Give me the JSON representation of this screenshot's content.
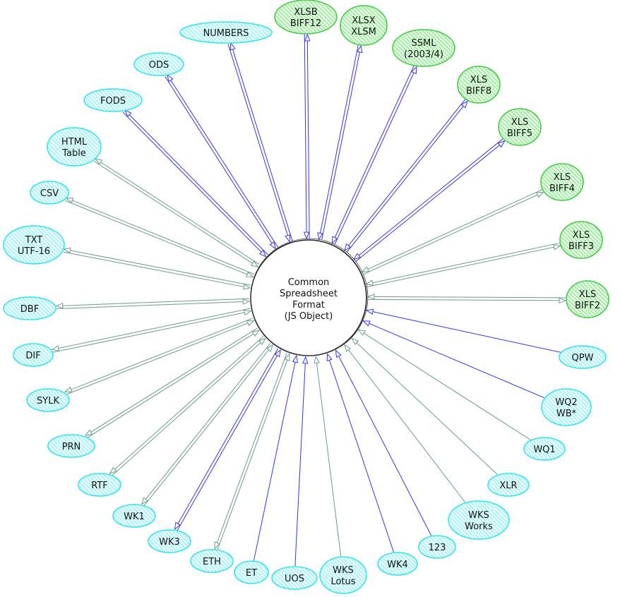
{
  "center": {
    "lines": [
      "Common",
      "Spreadsheet",
      "Format",
      "(JS Object)"
    ]
  },
  "colors": {
    "native_fill": "#5fe05f",
    "native_stroke": "#3ccc3c",
    "other_fill": "#5ee8ee",
    "other_stroke": "#30e4ec",
    "edge_blue": "#3434f0",
    "edge_gray": "#6a9c8a"
  },
  "nodes": [
    {
      "lines": [
        "XLSB",
        "BIFF12"
      ],
      "kind": "native",
      "edge": "blue",
      "both": true
    },
    {
      "lines": [
        "XLSX",
        "XLSM"
      ],
      "kind": "native",
      "edge": "blue",
      "both": true
    },
    {
      "lines": [
        "SSML",
        "(2003/4)"
      ],
      "kind": "native",
      "edge": "blue",
      "both": true
    },
    {
      "lines": [
        "XLS",
        "BIFF8"
      ],
      "kind": "native",
      "edge": "blue",
      "both": true
    },
    {
      "lines": [
        "XLS",
        "BIFF5"
      ],
      "kind": "native",
      "edge": "blue",
      "both": true
    },
    {
      "lines": [
        "XLS",
        "BIFF4"
      ],
      "kind": "native",
      "edge": "gray",
      "both": true
    },
    {
      "lines": [
        "XLS",
        "BIFF3"
      ],
      "kind": "native",
      "edge": "gray",
      "both": true
    },
    {
      "lines": [
        "XLS",
        "BIFF2"
      ],
      "kind": "native",
      "edge": "gray",
      "both": true
    },
    {
      "lines": [
        "QPW"
      ],
      "kind": "other",
      "edge": "blue",
      "both": false
    },
    {
      "lines": [
        "WQ2",
        "WB*"
      ],
      "kind": "other",
      "edge": "blue",
      "both": false
    },
    {
      "lines": [
        "WQ1"
      ],
      "kind": "other",
      "edge": "gray",
      "both": false
    },
    {
      "lines": [
        "XLR"
      ],
      "kind": "other",
      "edge": "gray",
      "both": false
    },
    {
      "lines": [
        "WKS",
        "Works"
      ],
      "kind": "other",
      "edge": "gray",
      "both": false
    },
    {
      "lines": [
        "123"
      ],
      "kind": "other",
      "edge": "blue",
      "both": false
    },
    {
      "lines": [
        "WK4"
      ],
      "kind": "other",
      "edge": "blue",
      "both": false
    },
    {
      "lines": [
        "WKS",
        "Lotus"
      ],
      "kind": "other",
      "edge": "gray",
      "both": false
    },
    {
      "lines": [
        "UOS"
      ],
      "kind": "other",
      "edge": "blue",
      "both": false
    },
    {
      "lines": [
        "ET"
      ],
      "kind": "other",
      "edge": "blue",
      "both": false
    },
    {
      "lines": [
        "ETH"
      ],
      "kind": "other",
      "edge": "gray",
      "both": true
    },
    {
      "lines": [
        "WK3"
      ],
      "kind": "other",
      "edge": "blue",
      "both": true
    },
    {
      "lines": [
        "WK1"
      ],
      "kind": "other",
      "edge": "gray",
      "both": true
    },
    {
      "lines": [
        "RTF"
      ],
      "kind": "other",
      "edge": "gray",
      "both": true
    },
    {
      "lines": [
        "PRN"
      ],
      "kind": "other",
      "edge": "gray",
      "both": true
    },
    {
      "lines": [
        "SYLK"
      ],
      "kind": "other",
      "edge": "gray",
      "both": true
    },
    {
      "lines": [
        "DIF"
      ],
      "kind": "other",
      "edge": "gray",
      "both": true
    },
    {
      "lines": [
        "DBF"
      ],
      "kind": "other",
      "edge": "gray",
      "both": true
    },
    {
      "lines": [
        "TXT",
        "UTF-16"
      ],
      "kind": "other",
      "edge": "gray",
      "both": true
    },
    {
      "lines": [
        "CSV"
      ],
      "kind": "other",
      "edge": "gray",
      "both": true
    },
    {
      "lines": [
        "HTML",
        "Table"
      ],
      "kind": "other",
      "edge": "gray",
      "both": true
    },
    {
      "lines": [
        "FODS"
      ],
      "kind": "other",
      "edge": "blue",
      "both": true
    },
    {
      "lines": [
        "ODS"
      ],
      "kind": "other",
      "edge": "blue",
      "both": true
    },
    {
      "lines": [
        "NUMBERS"
      ],
      "kind": "other",
      "edge": "blue",
      "both": true
    }
  ]
}
